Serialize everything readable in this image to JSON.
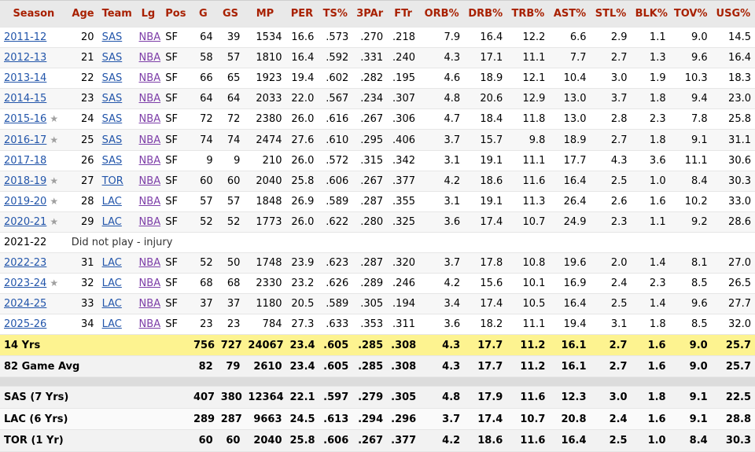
{
  "headers": [
    "Season",
    "Age",
    "Team",
    "Lg",
    "Pos",
    "G",
    "GS",
    "MP",
    "PER",
    "TS%",
    "3PAr",
    "FTr",
    "ORB%",
    "DRB%",
    "TRB%",
    "AST%",
    "STL%",
    "BLK%",
    "TOV%",
    "USG%"
  ],
  "seasons": [
    {
      "season": "2011-12",
      "star": false,
      "age": "20",
      "team": "SAS",
      "lg": "NBA",
      "pos": "SF",
      "g": "64",
      "gs": "39",
      "mp": "1534",
      "per": "16.6",
      "ts": ".573",
      "par3": ".270",
      "ftr": ".218",
      "orb": "7.9",
      "drb": "16.4",
      "trb": "12.2",
      "ast": "6.6",
      "stl": "2.9",
      "blk": "1.1",
      "tov": "9.0",
      "usg": "14.5"
    },
    {
      "season": "2012-13",
      "star": false,
      "age": "21",
      "team": "SAS",
      "lg": "NBA",
      "pos": "SF",
      "g": "58",
      "gs": "57",
      "mp": "1810",
      "per": "16.4",
      "ts": ".592",
      "par3": ".331",
      "ftr": ".240",
      "orb": "4.3",
      "drb": "17.1",
      "trb": "11.1",
      "ast": "7.7",
      "stl": "2.7",
      "blk": "1.3",
      "tov": "9.6",
      "usg": "16.4"
    },
    {
      "season": "2013-14",
      "star": false,
      "age": "22",
      "team": "SAS",
      "lg": "NBA",
      "pos": "SF",
      "g": "66",
      "gs": "65",
      "mp": "1923",
      "per": "19.4",
      "ts": ".602",
      "par3": ".282",
      "ftr": ".195",
      "orb": "4.6",
      "drb": "18.9",
      "trb": "12.1",
      "ast": "10.4",
      "stl": "3.0",
      "blk": "1.9",
      "tov": "10.3",
      "usg": "18.3"
    },
    {
      "season": "2014-15",
      "star": false,
      "age": "23",
      "team": "SAS",
      "lg": "NBA",
      "pos": "SF",
      "g": "64",
      "gs": "64",
      "mp": "2033",
      "per": "22.0",
      "ts": ".567",
      "par3": ".234",
      "ftr": ".307",
      "orb": "4.8",
      "drb": "20.6",
      "trb": "12.9",
      "ast": "13.0",
      "stl": "3.7",
      "blk": "1.8",
      "tov": "9.4",
      "usg": "23.0"
    },
    {
      "season": "2015-16",
      "star": true,
      "age": "24",
      "team": "SAS",
      "lg": "NBA",
      "pos": "SF",
      "g": "72",
      "gs": "72",
      "mp": "2380",
      "per": "26.0",
      "ts": ".616",
      "par3": ".267",
      "ftr": ".306",
      "orb": "4.7",
      "drb": "18.4",
      "trb": "11.8",
      "ast": "13.0",
      "stl": "2.8",
      "blk": "2.3",
      "tov": "7.8",
      "usg": "25.8"
    },
    {
      "season": "2016-17",
      "star": true,
      "age": "25",
      "team": "SAS",
      "lg": "NBA",
      "pos": "SF",
      "g": "74",
      "gs": "74",
      "mp": "2474",
      "per": "27.6",
      "ts": ".610",
      "par3": ".295",
      "ftr": ".406",
      "orb": "3.7",
      "drb": "15.7",
      "trb": "9.8",
      "ast": "18.9",
      "stl": "2.7",
      "blk": "1.8",
      "tov": "9.1",
      "usg": "31.1"
    },
    {
      "season": "2017-18",
      "star": false,
      "age": "26",
      "team": "SAS",
      "lg": "NBA",
      "pos": "SF",
      "g": "9",
      "gs": "9",
      "mp": "210",
      "per": "26.0",
      "ts": ".572",
      "par3": ".315",
      "ftr": ".342",
      "orb": "3.1",
      "drb": "19.1",
      "trb": "11.1",
      "ast": "17.7",
      "stl": "4.3",
      "blk": "3.6",
      "tov": "11.1",
      "usg": "30.6"
    },
    {
      "season": "2018-19",
      "star": true,
      "age": "27",
      "team": "TOR",
      "lg": "NBA",
      "pos": "SF",
      "g": "60",
      "gs": "60",
      "mp": "2040",
      "per": "25.8",
      "ts": ".606",
      "par3": ".267",
      "ftr": ".377",
      "orb": "4.2",
      "drb": "18.6",
      "trb": "11.6",
      "ast": "16.4",
      "stl": "2.5",
      "blk": "1.0",
      "tov": "8.4",
      "usg": "30.3"
    },
    {
      "season": "2019-20",
      "star": true,
      "age": "28",
      "team": "LAC",
      "lg": "NBA",
      "pos": "SF",
      "g": "57",
      "gs": "57",
      "mp": "1848",
      "per": "26.9",
      "ts": ".589",
      "par3": ".287",
      "ftr": ".355",
      "orb": "3.1",
      "drb": "19.1",
      "trb": "11.3",
      "ast": "26.4",
      "stl": "2.6",
      "blk": "1.6",
      "tov": "10.2",
      "usg": "33.0"
    },
    {
      "season": "2020-21",
      "star": true,
      "age": "29",
      "team": "LAC",
      "lg": "NBA",
      "pos": "SF",
      "g": "52",
      "gs": "52",
      "mp": "1773",
      "per": "26.0",
      "ts": ".622",
      "par3": ".280",
      "ftr": ".325",
      "orb": "3.6",
      "drb": "17.4",
      "trb": "10.7",
      "ast": "24.9",
      "stl": "2.3",
      "blk": "1.1",
      "tov": "9.2",
      "usg": "28.6"
    },
    {
      "season": "2021-22",
      "dnp": "Did not play - injury"
    },
    {
      "season": "2022-23",
      "star": false,
      "age": "31",
      "team": "LAC",
      "lg": "NBA",
      "pos": "SF",
      "g": "52",
      "gs": "50",
      "mp": "1748",
      "per": "23.9",
      "ts": ".623",
      "par3": ".287",
      "ftr": ".320",
      "orb": "3.7",
      "drb": "17.8",
      "trb": "10.8",
      "ast": "19.6",
      "stl": "2.0",
      "blk": "1.4",
      "tov": "8.1",
      "usg": "27.0"
    },
    {
      "season": "2023-24",
      "star": true,
      "age": "32",
      "team": "LAC",
      "lg": "NBA",
      "pos": "SF",
      "g": "68",
      "gs": "68",
      "mp": "2330",
      "per": "23.2",
      "ts": ".626",
      "par3": ".289",
      "ftr": ".246",
      "orb": "4.2",
      "drb": "15.6",
      "trb": "10.1",
      "ast": "16.9",
      "stl": "2.4",
      "blk": "2.3",
      "tov": "8.5",
      "usg": "26.5"
    },
    {
      "season": "2024-25",
      "star": false,
      "age": "33",
      "team": "LAC",
      "lg": "NBA",
      "pos": "SF",
      "g": "37",
      "gs": "37",
      "mp": "1180",
      "per": "20.5",
      "ts": ".589",
      "par3": ".305",
      "ftr": ".194",
      "orb": "3.4",
      "drb": "17.4",
      "trb": "10.5",
      "ast": "16.4",
      "stl": "2.5",
      "blk": "1.4",
      "tov": "9.6",
      "usg": "27.7"
    },
    {
      "season": "2025-26",
      "star": false,
      "age": "34",
      "team": "LAC",
      "lg": "NBA",
      "pos": "SF",
      "g": "23",
      "gs": "23",
      "mp": "784",
      "per": "27.3",
      "ts": ".633",
      "par3": ".353",
      "ftr": ".311",
      "orb": "3.6",
      "drb": "18.2",
      "trb": "11.1",
      "ast": "19.4",
      "stl": "3.1",
      "blk": "1.8",
      "tov": "8.5",
      "usg": "32.0"
    }
  ],
  "career": {
    "label": "14 Yrs",
    "g": "756",
    "gs": "727",
    "mp": "24067",
    "per": "23.4",
    "ts": ".605",
    "par3": ".285",
    "ftr": ".308",
    "orb": "4.3",
    "drb": "17.7",
    "trb": "11.2",
    "ast": "16.1",
    "stl": "2.7",
    "blk": "1.6",
    "tov": "9.0",
    "usg": "25.7"
  },
  "avg82": {
    "label": "82 Game Avg",
    "g": "82",
    "gs": "79",
    "mp": "2610",
    "per": "23.4",
    "ts": ".605",
    "par3": ".285",
    "ftr": ".308",
    "orb": "4.3",
    "drb": "17.7",
    "trb": "11.2",
    "ast": "16.1",
    "stl": "2.7",
    "blk": "1.6",
    "tov": "9.0",
    "usg": "25.7"
  },
  "teams": [
    {
      "label": "SAS (7 Yrs)",
      "g": "407",
      "gs": "380",
      "mp": "12364",
      "per": "22.1",
      "ts": ".597",
      "par3": ".279",
      "ftr": ".305",
      "orb": "4.8",
      "drb": "17.9",
      "trb": "11.6",
      "ast": "12.3",
      "stl": "3.0",
      "blk": "1.8",
      "tov": "9.1",
      "usg": "22.5"
    },
    {
      "label": "LAC (6 Yrs)",
      "g": "289",
      "gs": "287",
      "mp": "9663",
      "per": "24.5",
      "ts": ".613",
      "par3": ".294",
      "ftr": ".296",
      "orb": "3.7",
      "drb": "17.4",
      "trb": "10.7",
      "ast": "20.8",
      "stl": "2.4",
      "blk": "1.6",
      "tov": "9.1",
      "usg": "28.8"
    },
    {
      "label": "TOR (1 Yr)",
      "g": "60",
      "gs": "60",
      "mp": "2040",
      "per": "25.8",
      "ts": ".606",
      "par3": ".267",
      "ftr": ".377",
      "orb": "4.2",
      "drb": "18.6",
      "trb": "11.6",
      "ast": "16.4",
      "stl": "2.5",
      "blk": "1.0",
      "tov": "8.4",
      "usg": "30.3"
    }
  ],
  "colors": {
    "header_text": "#a82000",
    "link": "#2255aa",
    "league_link": "#7d3ea8",
    "career_row": "#fdf390"
  }
}
